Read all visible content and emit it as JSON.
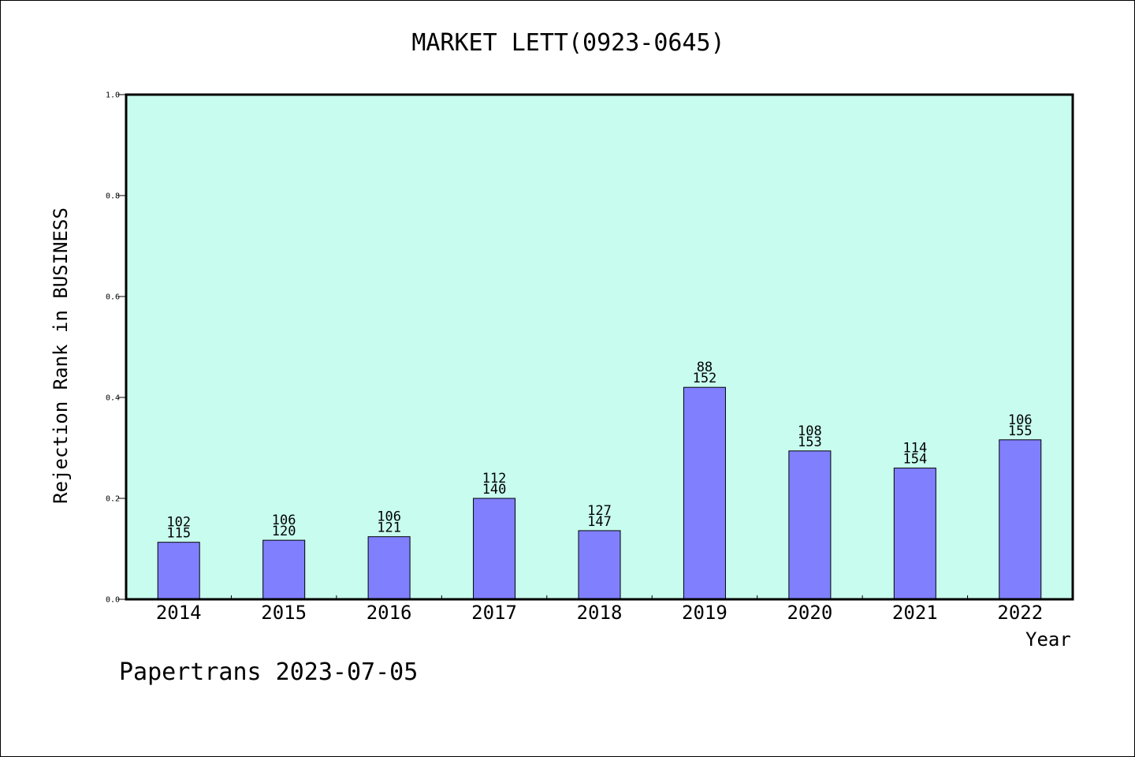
{
  "chart_data": {
    "type": "bar",
    "title": "MARKET LETT(0923-0645)",
    "xlabel": "Year",
    "ylabel": "Rejection Rank in BUSINESS",
    "ylim": [
      0,
      1.0
    ],
    "yticks": [
      "0.0",
      "0.2",
      "0.4",
      "0.6",
      "0.8",
      "1.0"
    ],
    "grid": false,
    "categories": [
      "2014",
      "2015",
      "2016",
      "2017",
      "2018",
      "2019",
      "2020",
      "2021",
      "2022"
    ],
    "values": [
      0.113,
      0.117,
      0.124,
      0.2,
      0.136,
      0.42,
      0.294,
      0.26,
      0.316
    ],
    "labels_top": [
      "102",
      "106",
      "106",
      "112",
      "127",
      "88",
      "108",
      "114",
      "106"
    ],
    "labels_bottom": [
      "115",
      "120",
      "121",
      "140",
      "147",
      "152",
      "153",
      "154",
      "155"
    ],
    "colors": {
      "background": "#c8fcee",
      "bar": "#8080ff",
      "bar_edge": "#000000"
    }
  },
  "footer": "Papertrans 2023-07-05"
}
